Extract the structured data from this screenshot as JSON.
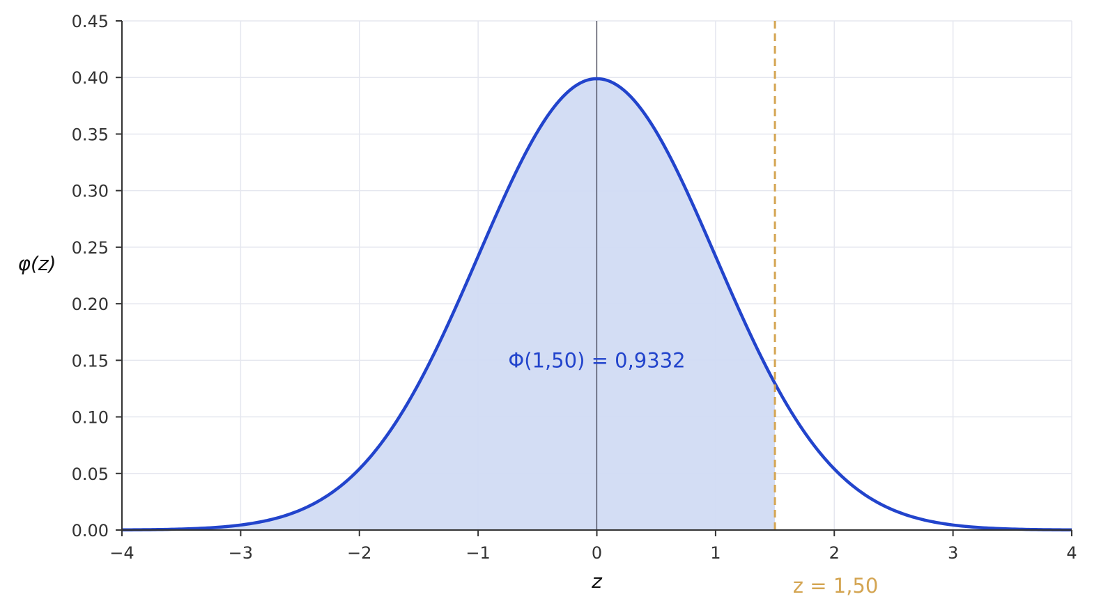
{
  "chart_data": {
    "type": "area",
    "xlabel": "z",
    "ylabel": "φ(z)",
    "xlim": [
      -4,
      4
    ],
    "ylim": [
      0,
      0.45
    ],
    "grid": true,
    "x_ticks": [
      -4,
      -3,
      -2,
      -1,
      0,
      1,
      2,
      3,
      4
    ],
    "x_tick_labels": [
      "−4",
      "−3",
      "−2",
      "−1",
      "0",
      "1",
      "2",
      "3",
      "4"
    ],
    "y_ticks": [
      0,
      0.05,
      0.1,
      0.15,
      0.2,
      0.25,
      0.3,
      0.35,
      0.4,
      0.45
    ],
    "y_tick_labels": [
      "0.00",
      "0.05",
      "0.10",
      "0.15",
      "0.20",
      "0.25",
      "0.30",
      "0.35",
      "0.40",
      "0.45"
    ],
    "series": [
      {
        "function": "standard normal density",
        "x": [
          -4.0,
          -3.75,
          -3.5,
          -3.25,
          -3.0,
          -2.75,
          -2.5,
          -2.25,
          -2.0,
          -1.75,
          -1.5,
          -1.25,
          -1.0,
          -0.75,
          -0.5,
          -0.25,
          0.0,
          0.25,
          0.5,
          0.75,
          1.0,
          1.25,
          1.5,
          1.75,
          2.0,
          2.25,
          2.5,
          2.75,
          3.0,
          3.25,
          3.5,
          3.75,
          4.0
        ],
        "y": [
          0.0001,
          0.0004,
          0.0009,
          0.002,
          0.0044,
          0.0091,
          0.0175,
          0.0317,
          0.054,
          0.0863,
          0.1295,
          0.1826,
          0.242,
          0.3011,
          0.3521,
          0.3867,
          0.3989,
          0.3867,
          0.3521,
          0.3011,
          0.242,
          0.1826,
          0.1295,
          0.0863,
          0.054,
          0.0317,
          0.0175,
          0.0091,
          0.0044,
          0.002,
          0.0009,
          0.0004,
          0.0001
        ]
      }
    ],
    "shaded_region": {
      "from": -4,
      "to": 1.5
    },
    "vertical_line": {
      "x": 1.5,
      "label": "z = 1,50"
    },
    "annotation": {
      "text": "Φ(1,50) = 0,9332",
      "x": 0,
      "y": 0.15
    },
    "colors": {
      "curve": "#2244cc",
      "fill": "#d1dbf3",
      "marker": "#d4a552",
      "annotation": "#2244cc",
      "grid": "#e5e7ef",
      "axis": "#333333",
      "zero_line": "#333344"
    }
  }
}
